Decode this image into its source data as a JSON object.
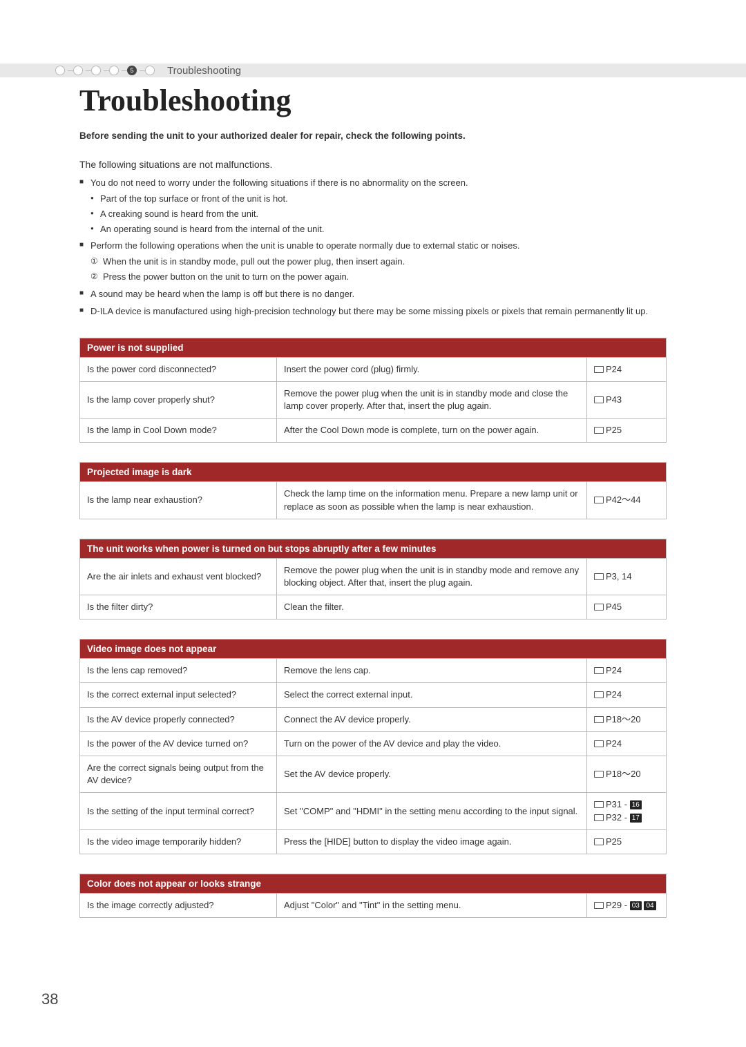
{
  "breadcrumb": {
    "step_number": "5",
    "label": "Troubleshooting"
  },
  "title": "Troubleshooting",
  "intro": "Before sending the unit to your authorized dealer for repair, check the following points.",
  "situations_heading": "The following situations are not malfunctions.",
  "notes": {
    "n1": "You do not need to worry under the following situations if there is no abnormality on the screen.",
    "n1_subs": [
      "Part of the top surface or front of the unit is hot.",
      "A creaking sound is heard from the unit.",
      "An operating sound is heard from the internal of the unit."
    ],
    "n2": "Perform the following operations when the unit is unable to operate normally due to external static or noises.",
    "n2_subs": [
      {
        "num": "①",
        "text": "When the unit is in standby mode, pull out the power plug, then insert again."
      },
      {
        "num": "②",
        "text": "Press the power button on the unit to turn on the power again."
      }
    ],
    "n3": "A sound may be heard when the lamp is off but there is no danger.",
    "n4": "D-ILA device is manufactured using high-precision technology but there may be some missing pixels or pixels that remain permanently lit up."
  },
  "tables": [
    {
      "header": "Power is not supplied",
      "rows": [
        {
          "q": "Is the power cord disconnected?",
          "a": "Insert the power cord (plug) firmly.",
          "ref": "P24"
        },
        {
          "q": "Is the lamp cover properly shut?",
          "a": "Remove the power plug when the unit is in standby mode and close the lamp cover properly. After that, insert the plug again.",
          "ref": "P43"
        },
        {
          "q": "Is the lamp in Cool Down mode?",
          "a": "After the Cool Down mode is complete, turn on the power again.",
          "ref": "P25"
        }
      ]
    },
    {
      "header": "Projected image is dark",
      "rows": [
        {
          "q": "Is the lamp near exhaustion?",
          "a": "Check the lamp time on the information menu. Prepare a new lamp unit or replace as soon as possible when the lamp is near exhaustion.",
          "ref": "P42～44"
        }
      ]
    },
    {
      "header": "The unit works when power is turned on but stops abruptly after a few minutes",
      "rows": [
        {
          "q": "Are the air inlets and exhaust vent blocked?",
          "a": "Remove the power plug when the unit is in standby mode and remove any blocking object. After that, insert the plug again.",
          "ref": "P3, 14"
        },
        {
          "q": "Is the filter dirty?",
          "a": "Clean the filter.",
          "ref": "P45"
        }
      ]
    },
    {
      "header": "Video image does not appear",
      "rows": [
        {
          "q": "Is the lens cap removed?",
          "a": "Remove the lens cap.",
          "ref": "P24"
        },
        {
          "q": "Is the correct external input selected?",
          "a": "Select the correct external input.",
          "ref": "P24"
        },
        {
          "q": "Is the AV device properly connected?",
          "a": "Connect the AV device properly.",
          "ref": "P18～20"
        },
        {
          "q": "Is the power of the AV device turned on?",
          "a": "Turn on the power of the AV device and play the video.",
          "ref": "P24"
        },
        {
          "q": "Are the correct signals being output from the AV device?",
          "a": "Set the AV device properly.",
          "ref": "P18～20"
        },
        {
          "q": "Is the setting of the input terminal correct?",
          "a": "Set \"COMP\" and \"HDMI\" in the setting menu according to the input signal.",
          "ref_multi": [
            {
              "p": "P31",
              "box": "16"
            },
            {
              "p": "P32",
              "box": "17"
            }
          ]
        },
        {
          "q": "Is the video image temporarily hidden?",
          "a": "Press the [HIDE] button to display the video image again.",
          "ref": "P25"
        }
      ]
    },
    {
      "header": "Color does not appear or looks strange",
      "rows": [
        {
          "q": "Is the image correctly adjusted?",
          "a": "Adjust \"Color\" and \"Tint\" in the setting menu.",
          "ref_boxes": {
            "p": "P29",
            "boxes": [
              "03",
              "04"
            ]
          }
        }
      ]
    }
  ],
  "page_number": "38",
  "colors": {
    "table_header_bg": "#a02828",
    "table_header_fg": "#ffffff",
    "border": "#bbbbbb",
    "breadcrumb_bg": "#e8e8e8"
  }
}
